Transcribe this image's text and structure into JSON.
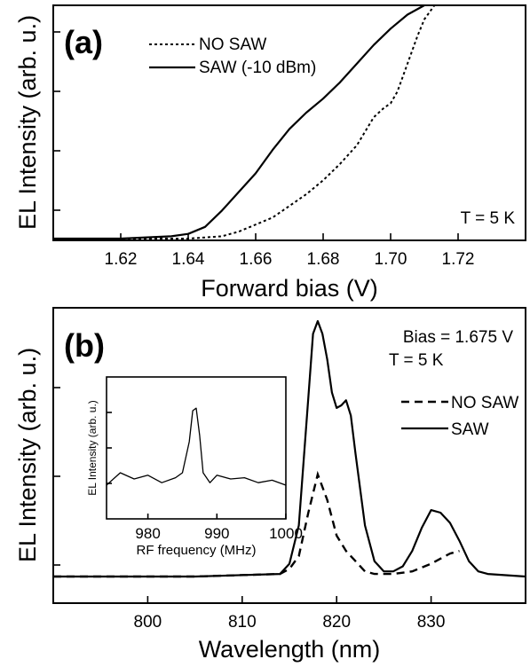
{
  "chart_data": [
    {
      "panel_label": "(a)",
      "type": "line",
      "xlabel": "Forward bias (V)",
      "ylabel": "EL Intensity (arb. u.)",
      "xlim": [
        1.6,
        1.74
      ],
      "ylim": [
        0,
        1
      ],
      "xticks": [
        "1.62",
        "1.64",
        "1.66",
        "1.68",
        "1.70",
        "1.72"
      ],
      "annotation": "T = 5 K",
      "legend_position": "top-center",
      "series": [
        {
          "name": "NO SAW",
          "style": "dotted",
          "x": [
            1.6,
            1.62,
            1.64,
            1.65,
            1.655,
            1.66,
            1.665,
            1.67,
            1.675,
            1.68,
            1.685,
            1.69,
            1.695,
            1.698,
            1.7,
            1.702,
            1.705,
            1.708,
            1.71,
            1.713
          ],
          "y": [
            0.0,
            0.0,
            0.0,
            0.01,
            0.03,
            0.06,
            0.09,
            0.14,
            0.19,
            0.25,
            0.32,
            0.4,
            0.52,
            0.56,
            0.58,
            0.63,
            0.75,
            0.87,
            0.94,
            1.0
          ]
        },
        {
          "name": "SAW (-10 dBm)",
          "style": "solid",
          "x": [
            1.6,
            1.62,
            1.635,
            1.64,
            1.645,
            1.65,
            1.655,
            1.66,
            1.665,
            1.67,
            1.675,
            1.68,
            1.685,
            1.69,
            1.695,
            1.7,
            1.705,
            1.71
          ],
          "y": [
            0.0,
            0.0,
            0.01,
            0.02,
            0.05,
            0.12,
            0.2,
            0.28,
            0.38,
            0.47,
            0.54,
            0.6,
            0.67,
            0.75,
            0.83,
            0.9,
            0.96,
            1.0
          ]
        }
      ]
    },
    {
      "panel_label": "(b)",
      "type": "line",
      "xlabel": "Wavelength (nm)",
      "ylabel": "EL Intensity (arb. u.)",
      "xlim": [
        790,
        840
      ],
      "ylim": [
        0,
        1
      ],
      "xticks": [
        "800",
        "810",
        "820",
        "830"
      ],
      "annotations": [
        "Bias = 1.675 V",
        "T = 5 K"
      ],
      "legend_position": "right",
      "series": [
        {
          "name": "NO SAW",
          "style": "dashed",
          "x": [
            790,
            805,
            814,
            815,
            816,
            817,
            818,
            819,
            820,
            821,
            822,
            823,
            824,
            826,
            828,
            830,
            831,
            832,
            833
          ],
          "y": [
            0.0,
            0.0,
            0.01,
            0.03,
            0.08,
            0.25,
            0.4,
            0.3,
            0.16,
            0.1,
            0.06,
            0.02,
            0.01,
            0.01,
            0.02,
            0.05,
            0.07,
            0.09,
            0.1
          ]
        },
        {
          "name": "SAW",
          "style": "solid",
          "x": [
            790,
            805,
            814,
            815,
            816,
            817,
            817.5,
            818,
            818.5,
            819,
            819.5,
            820,
            820.5,
            821,
            821.5,
            822,
            823,
            824,
            825,
            826,
            827,
            828,
            829,
            830,
            831,
            832,
            833,
            834,
            835,
            836,
            840
          ],
          "y": [
            0.0,
            0.0,
            0.01,
            0.05,
            0.2,
            0.7,
            0.95,
            1.0,
            0.95,
            0.85,
            0.72,
            0.66,
            0.67,
            0.69,
            0.63,
            0.48,
            0.2,
            0.06,
            0.02,
            0.02,
            0.04,
            0.1,
            0.19,
            0.26,
            0.25,
            0.21,
            0.14,
            0.06,
            0.02,
            0.01,
            0.0
          ]
        }
      ],
      "inset": {
        "type": "line",
        "xlabel": "RF frequency (MHz)",
        "ylabel": "EL Intensity (arb. u.)",
        "xlim": [
          974,
          1000
        ],
        "ylim": [
          0,
          1
        ],
        "xticks": [
          "980",
          "990",
          "1000"
        ],
        "series": [
          {
            "name": "",
            "x": [
              974,
              976,
              978,
              980,
              982,
              984,
              985,
              986,
              986.5,
              987,
              987.5,
              988,
              989,
              990,
              992,
              994,
              996,
              998,
              1000
            ],
            "y": [
              0.2,
              0.3,
              0.25,
              0.28,
              0.22,
              0.26,
              0.3,
              0.55,
              0.8,
              0.82,
              0.6,
              0.3,
              0.22,
              0.28,
              0.25,
              0.26,
              0.22,
              0.24,
              0.2
            ]
          }
        ]
      }
    }
  ]
}
